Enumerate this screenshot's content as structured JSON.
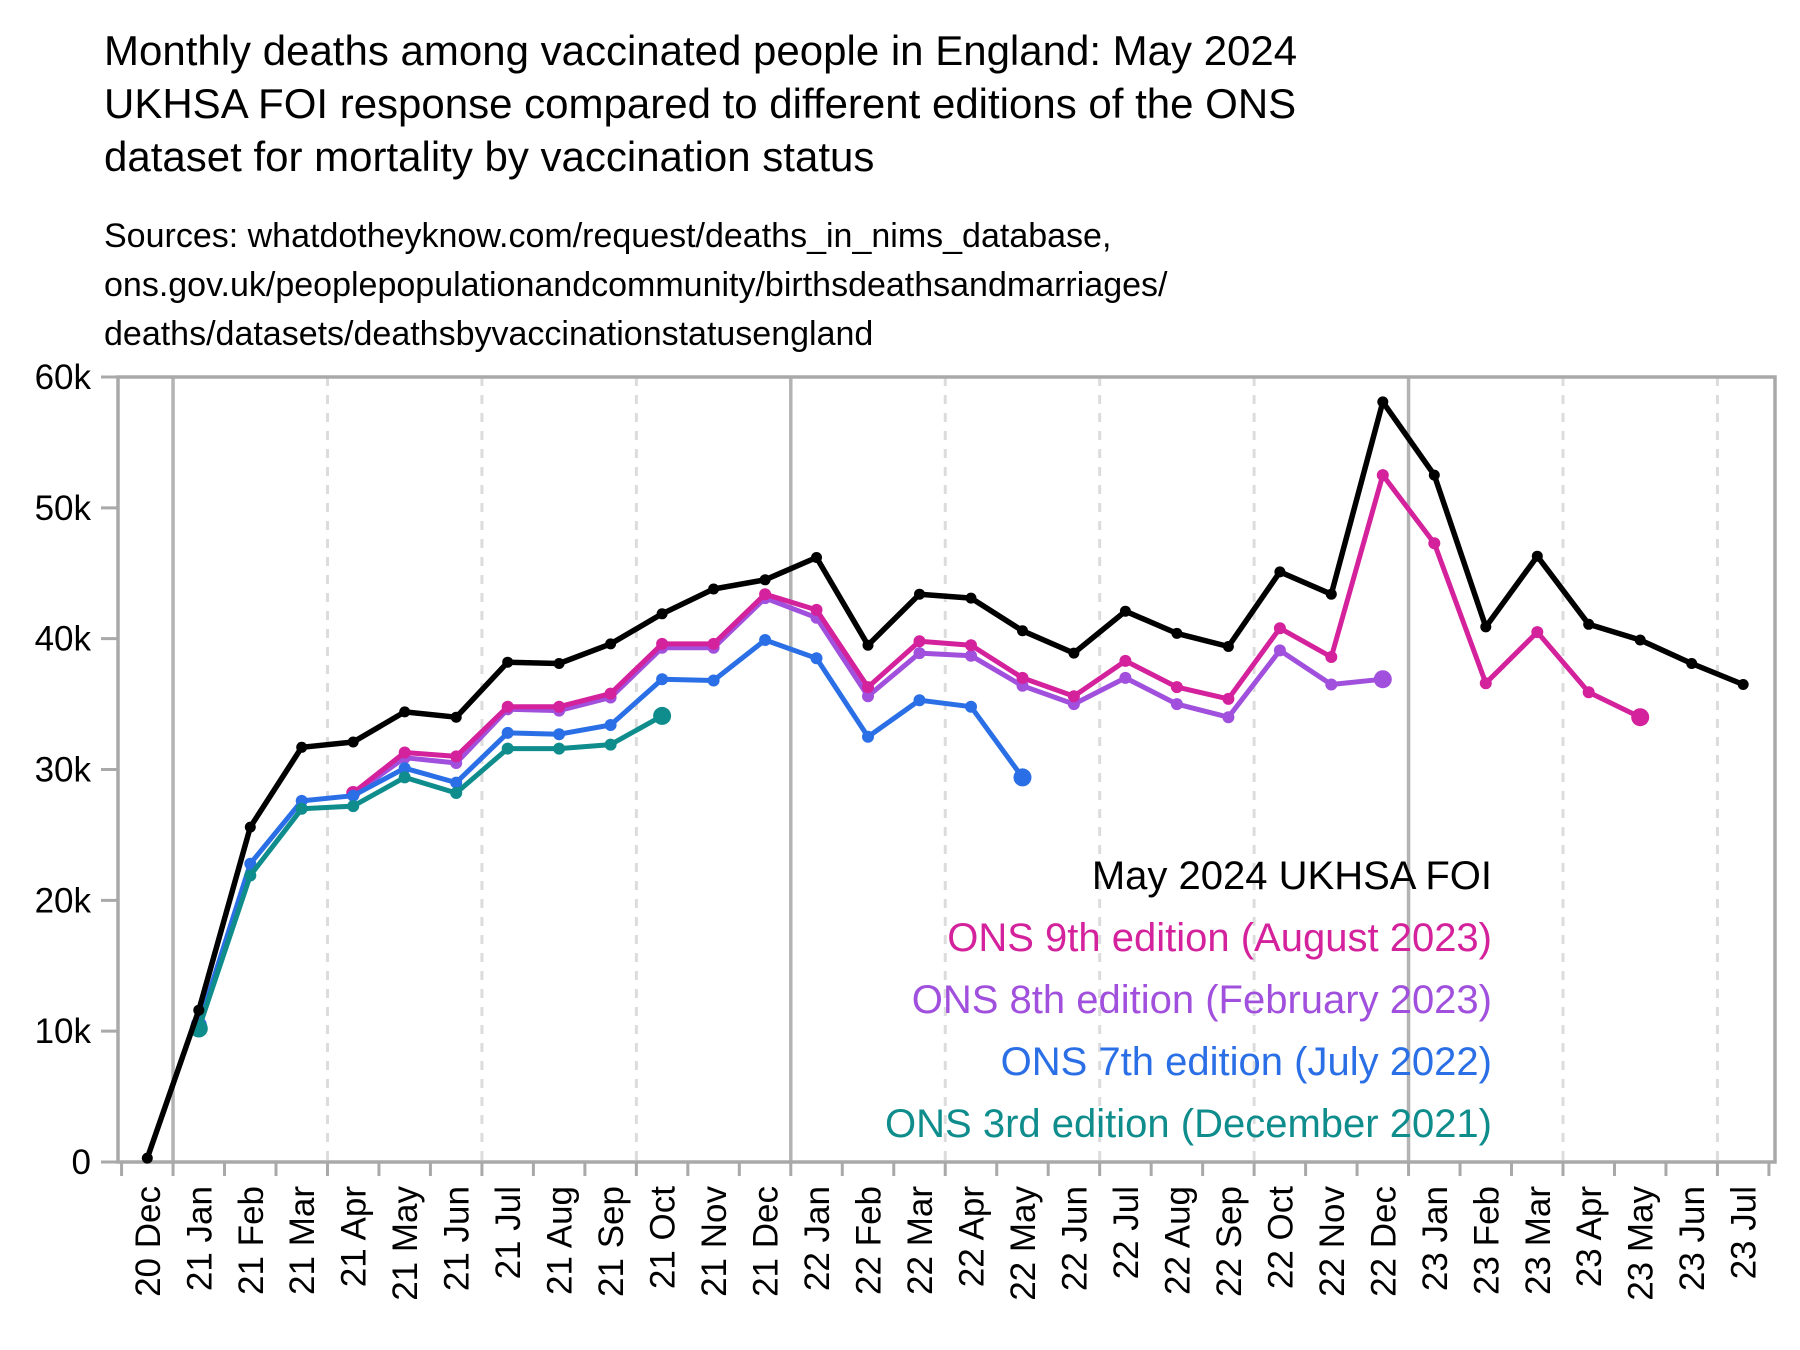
{
  "header": {
    "title_lines": [
      "Monthly deaths among vaccinated people in England: May 2024",
      "UKHSA FOI response compared to different editions of the ONS",
      "dataset for mortality by vaccination status"
    ],
    "source_lines": [
      "Sources: whatdotheyknow.com/request/deaths_in_nims_database,",
      "ons.gov.uk/peoplepopulationandcommunity/birthsdeathsandmarriages/",
      "deaths/datasets/deathsbyvaccinationstatusengland"
    ]
  },
  "chart_data": {
    "type": "line",
    "title": "Monthly deaths among vaccinated people in England: May 2024 UKHSA FOI response compared to different editions of the ONS dataset for mortality by vaccination status",
    "xlabel": "",
    "ylabel": "",
    "ylim": [
      0,
      60000
    ],
    "grid": {
      "quarter_months": [
        "Apr",
        "Jul",
        "Oct"
      ],
      "year_month": "Jan",
      "legend_position": "right-center"
    },
    "y_ticks": {
      "values": [
        0,
        10000,
        20000,
        30000,
        40000,
        50000,
        60000
      ],
      "labels": [
        "0",
        "10k",
        "20k",
        "30k",
        "40k",
        "50k",
        "60k"
      ]
    },
    "categories": [
      "20 Dec",
      "21 Jan",
      "21 Feb",
      "21 Mar",
      "21 Apr",
      "21 May",
      "21 Jun",
      "21 Jul",
      "21 Aug",
      "21 Sep",
      "21 Oct",
      "21 Nov",
      "21 Dec",
      "22 Jan",
      "22 Feb",
      "22 Mar",
      "22 Apr",
      "22 May",
      "22 Jun",
      "22 Jul",
      "22 Aug",
      "22 Sep",
      "22 Oct",
      "22 Nov",
      "22 Dec",
      "23 Jan",
      "23 Feb",
      "23 Mar",
      "23 Apr",
      "23 May",
      "23 Jun",
      "23 Jul"
    ],
    "series": [
      {
        "name": "May 2024 UKHSA FOI",
        "color": "#000000",
        "z": 5,
        "values": [
          300,
          11600,
          25600,
          31700,
          32100,
          34400,
          34000,
          38200,
          38100,
          39600,
          41900,
          43800,
          44500,
          46200,
          39500,
          43400,
          43100,
          40600,
          38900,
          42100,
          40400,
          39400,
          45100,
          43400,
          58100,
          52500,
          40900,
          46300,
          41100,
          39900,
          38100,
          36500
        ]
      },
      {
        "name": "ONS 9th edition (August 2023)",
        "color": "#D4219C",
        "z": 2,
        "values": [
          null,
          null,
          null,
          null,
          28200,
          31300,
          31000,
          34800,
          34800,
          35800,
          39600,
          39600,
          43400,
          42200,
          36300,
          39800,
          39500,
          37000,
          35600,
          38300,
          36300,
          35400,
          40800,
          38600,
          52500,
          47300,
          36600,
          40500,
          35900,
          34000,
          null,
          null
        ]
      },
      {
        "name": "ONS 8th edition (February 2023)",
        "color": "#A050DC",
        "z": 1,
        "values": [
          null,
          null,
          null,
          null,
          28100,
          30900,
          30500,
          34600,
          34500,
          35500,
          39300,
          39300,
          43100,
          41600,
          35600,
          38900,
          38700,
          36400,
          35000,
          37000,
          35000,
          34000,
          39100,
          36500,
          36900,
          null,
          null,
          null,
          null,
          null,
          null,
          null
        ]
      },
      {
        "name": "ONS 7th edition (July 2022)",
        "color": "#2B6FE6",
        "z": 3,
        "values": [
          null,
          10500,
          22800,
          27600,
          28000,
          30100,
          29000,
          32800,
          32700,
          33400,
          36900,
          36800,
          39900,
          38500,
          32500,
          35300,
          34800,
          29400,
          null,
          null,
          null,
          null,
          null,
          null,
          null,
          null,
          null,
          null,
          null,
          null,
          null,
          null
        ]
      },
      {
        "name": "ONS 3rd edition (December 2021)",
        "color": "#0F8C8C",
        "z": 4,
        "values": [
          null,
          10200,
          21900,
          27000,
          27200,
          29400,
          28200,
          31600,
          31600,
          31900,
          34100,
          null,
          null,
          null,
          null,
          null,
          null,
          null,
          null,
          null,
          null,
          null,
          null,
          null,
          null,
          null,
          null,
          null,
          null,
          null,
          null,
          null
        ]
      }
    ]
  }
}
